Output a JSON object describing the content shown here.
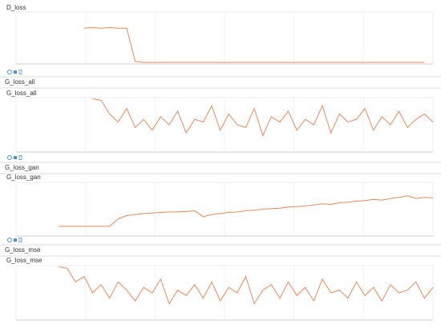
{
  "chart_data": [
    {
      "type": "line",
      "title": "D_loss",
      "color": "#f0875a",
      "ylim": [
        0,
        1
      ],
      "values": [
        null,
        null,
        null,
        null,
        null,
        null,
        null,
        null,
        0.69,
        0.7,
        0.69,
        0.7,
        0.69,
        0.69,
        0.05,
        0.03,
        0.03,
        0.03,
        0.03,
        0.03,
        0.03,
        0.03,
        0.03,
        0.03,
        0.03,
        0.03,
        0.03,
        0.03,
        0.03,
        0.03,
        0.03,
        0.03,
        0.03,
        0.03,
        0.03,
        0.03,
        0.03,
        0.03,
        0.03,
        0.03,
        0.03,
        0.03,
        0.03,
        0.03,
        0.03,
        0.03,
        0.03,
        0.03,
        0.03,
        null
      ]
    },
    {
      "type": "line",
      "group": "G_loss_all",
      "title": "G_loss_all",
      "color": "#f0875a",
      "ylim": [
        0,
        1
      ],
      "values": [
        null,
        null,
        null,
        null,
        null,
        null,
        null,
        null,
        null,
        0.98,
        0.95,
        0.7,
        0.55,
        0.8,
        0.45,
        0.6,
        0.4,
        0.65,
        0.5,
        0.75,
        0.35,
        0.6,
        0.55,
        0.85,
        0.4,
        0.7,
        0.5,
        0.45,
        0.8,
        0.3,
        0.65,
        0.55,
        0.75,
        0.4,
        0.6,
        0.5,
        0.85,
        0.35,
        0.7,
        0.55,
        0.6,
        0.8,
        0.4,
        0.65,
        0.5,
        0.75,
        0.45,
        0.6,
        0.7,
        0.55
      ]
    },
    {
      "type": "line",
      "group": "G_loss_gan",
      "title": "G_loss_gan",
      "color": "#f0875a",
      "ylim": [
        0,
        1
      ],
      "values": [
        null,
        null,
        null,
        null,
        null,
        0.18,
        0.18,
        0.18,
        0.18,
        0.18,
        0.18,
        0.18,
        0.32,
        0.38,
        0.4,
        0.42,
        0.43,
        0.44,
        0.45,
        0.45,
        0.46,
        0.47,
        0.36,
        0.4,
        0.42,
        0.44,
        0.45,
        0.47,
        0.48,
        0.5,
        0.51,
        0.52,
        0.54,
        0.55,
        0.56,
        0.58,
        0.6,
        0.59,
        0.62,
        0.63,
        0.65,
        0.66,
        0.68,
        0.67,
        0.7,
        0.72,
        0.75,
        0.7,
        0.72,
        0.71
      ]
    },
    {
      "type": "line",
      "group": "G_loss_mse",
      "title": "G_loss_mse",
      "color": "#f0875a",
      "ylim": [
        0,
        1
      ],
      "values": [
        null,
        null,
        null,
        null,
        null,
        0.98,
        0.95,
        0.7,
        0.8,
        0.5,
        0.65,
        0.4,
        0.7,
        0.55,
        0.35,
        0.6,
        0.5,
        0.75,
        0.3,
        0.55,
        0.45,
        0.65,
        0.4,
        0.7,
        0.35,
        0.6,
        0.5,
        0.8,
        0.3,
        0.55,
        0.65,
        0.4,
        0.7,
        0.45,
        0.6,
        0.35,
        0.75,
        0.5,
        0.55,
        0.4,
        0.7,
        0.45,
        0.6,
        0.35,
        0.65,
        0.5,
        0.55,
        0.7,
        0.4,
        0.6
      ]
    }
  ]
}
